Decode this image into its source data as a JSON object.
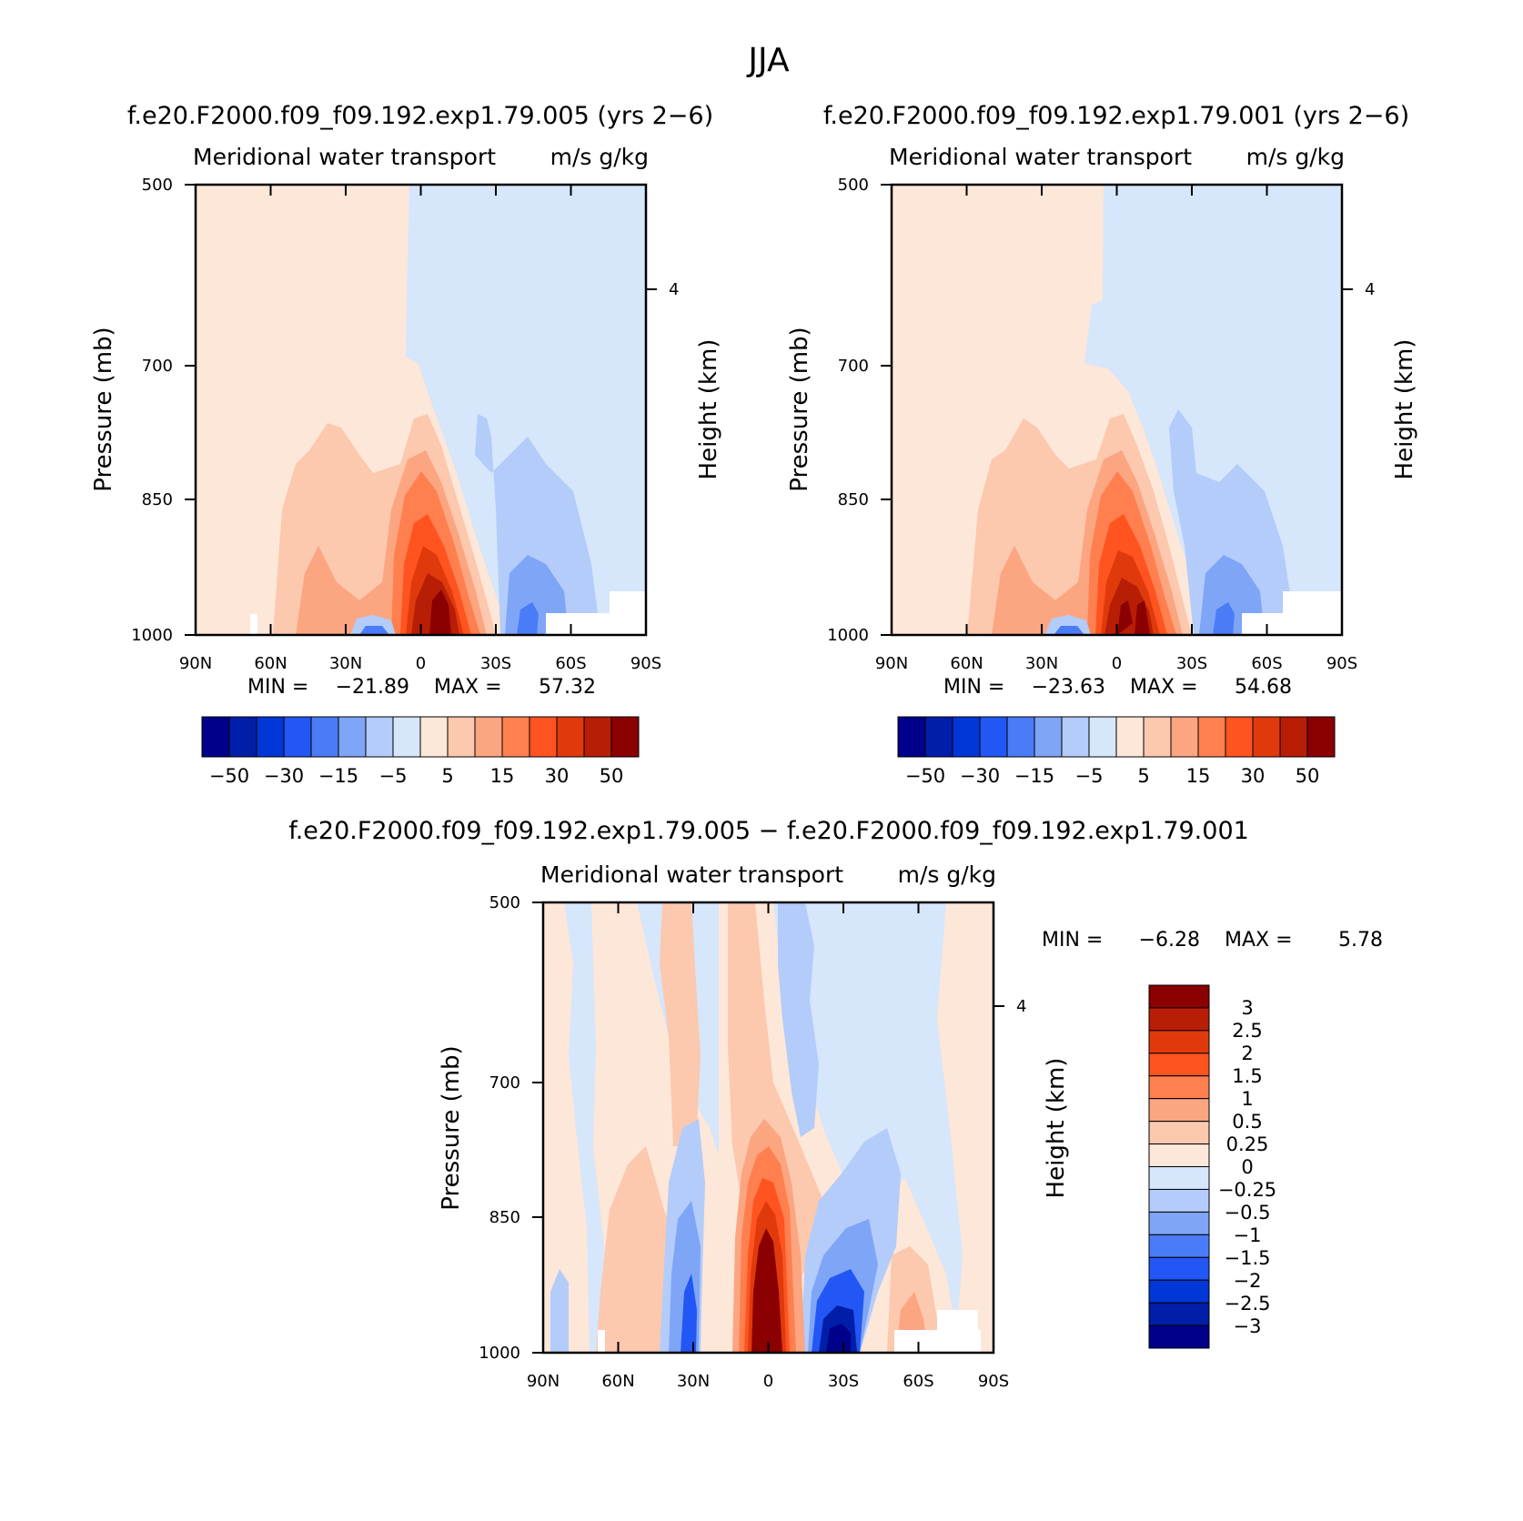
{
  "title": "JJA",
  "colors": {
    "neg": [
      "#00008b",
      "#001ea8",
      "#0037d6",
      "#2257f5",
      "#4a7cf7",
      "#7fa5f7",
      "#b3ccfa",
      "#d6e6fb"
    ],
    "pos": [
      "#fde7d8",
      "#fcc8ae",
      "#fca581",
      "#ff7f4f",
      "#ff5420",
      "#e03a0c",
      "#b81e06",
      "#8b0000"
    ]
  },
  "chart_data": [
    {
      "type": "heatmap",
      "subtitle": "f.e20.F2000.f09_f09.192.exp1.79.005 (yrs 2−6)",
      "plot_title_left": "Meridional water transport",
      "plot_title_right": "m/s g/kg",
      "ylabel": "Pressure (mb)",
      "ylabel_right": "Height (km)",
      "x_ticks": [
        "90N",
        "60N",
        "30N",
        "0",
        "30S",
        "60S",
        "90S"
      ],
      "y_ticks": [
        "500",
        "700",
        "850",
        "1000"
      ],
      "y_right_ticks": [
        "4"
      ],
      "min_label": "MIN =",
      "min_value": "−21.89",
      "max_label": "MAX =",
      "max_value": "57.32",
      "colorbar_labels": [
        "−50",
        "−30",
        "−15",
        "−5",
        "5",
        "15",
        "30",
        "50"
      ],
      "colorbar_orientation": "horizontal"
    },
    {
      "type": "heatmap",
      "subtitle": "f.e20.F2000.f09_f09.192.exp1.79.001 (yrs 2−6)",
      "plot_title_left": "Meridional water transport",
      "plot_title_right": "m/s g/kg",
      "ylabel": "Pressure (mb)",
      "ylabel_right": "Height (km)",
      "x_ticks": [
        "90N",
        "60N",
        "30N",
        "0",
        "30S",
        "60S",
        "90S"
      ],
      "y_ticks": [
        "500",
        "700",
        "850",
        "1000"
      ],
      "y_right_ticks": [
        "4"
      ],
      "min_label": "MIN =",
      "min_value": "−23.63",
      "max_label": "MAX =",
      "max_value": "54.68",
      "colorbar_labels": [
        "−50",
        "−30",
        "−15",
        "−5",
        "5",
        "15",
        "30",
        "50"
      ],
      "colorbar_orientation": "horizontal"
    },
    {
      "type": "heatmap",
      "subtitle": "f.e20.F2000.f09_f09.192.exp1.79.005 − f.e20.F2000.f09_f09.192.exp1.79.001",
      "plot_title_left": "Meridional water transport",
      "plot_title_right": "m/s g/kg",
      "ylabel": "Pressure (mb)",
      "ylabel_right": "Height (km)",
      "x_ticks": [
        "90N",
        "60N",
        "30N",
        "0",
        "30S",
        "60S",
        "90S"
      ],
      "y_ticks": [
        "500",
        "700",
        "850",
        "1000"
      ],
      "y_right_ticks": [
        "4"
      ],
      "min_label": "MIN =",
      "min_value": "−6.28",
      "max_label": "MAX =",
      "max_value": "5.78",
      "colorbar_labels": [
        "3",
        "2.5",
        "2",
        "1.5",
        "1",
        "0.5",
        "0.25",
        "0",
        "−0.25",
        "−0.5",
        "−1",
        "−1.5",
        "−2",
        "−2.5",
        "−3"
      ],
      "colorbar_orientation": "vertical"
    }
  ]
}
